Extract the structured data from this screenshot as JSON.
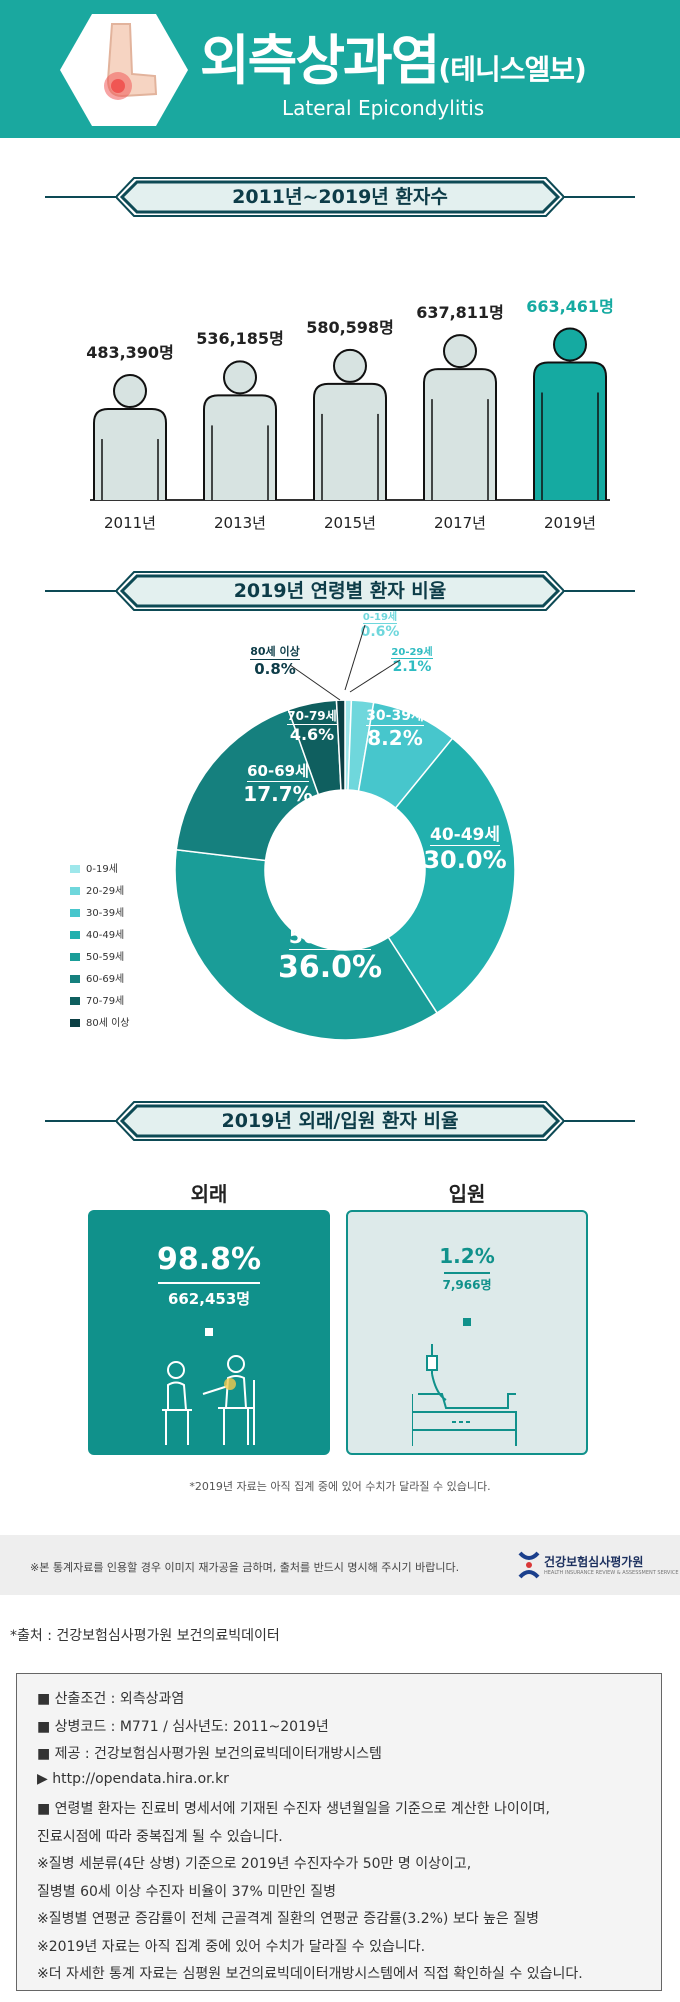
{
  "header": {
    "title": "외측상과염",
    "title_suffix": "(테니스엘보)",
    "subtitle": "Lateral Epicondylitis"
  },
  "sections": {
    "patients": "2011년~2019년 환자수",
    "age": "2019년 연령별 환자 비율",
    "visit": "2019년 외래/입원 환자 비율"
  },
  "colors": {
    "teal": "#1aa89f",
    "dark": "#0d3c48",
    "figure": "#d7e3e1",
    "highlight": "#15aaa1"
  },
  "chart_data": [
    {
      "type": "bar",
      "title": "2011년~2019년 환자수",
      "categories": [
        "2011년",
        "2013년",
        "2015년",
        "2017년",
        "2019년"
      ],
      "values": [
        483390,
        536185,
        580598,
        637811,
        663461
      ],
      "value_labels": [
        "483,390명",
        "536,185명",
        "580,598명",
        "637,811명",
        "663,461명"
      ],
      "highlight": "2019년"
    },
    {
      "type": "pie",
      "title": "2019년 연령별 환자 비율",
      "categories": [
        "0-19세",
        "20-29세",
        "30-39세",
        "40-49세",
        "50-59세",
        "60-69세",
        "70-79세",
        "80세 이상"
      ],
      "values": [
        0.6,
        2.1,
        8.2,
        30.0,
        36.0,
        17.7,
        4.6,
        0.8
      ],
      "value_labels": [
        "0.6%",
        "2.1%",
        "8.2%",
        "30.0%",
        "36.0%",
        "17.7%",
        "4.6%",
        "0.8%"
      ],
      "colors": [
        "#9ee7eb",
        "#6fd7dc",
        "#47c6cc",
        "#22b0ae",
        "#1a9d98",
        "#15807e",
        "#0f5f5f",
        "#0b3f44"
      ],
      "legend": "left"
    }
  ],
  "visit": {
    "outpatient_label": "외래",
    "outpatient_pct": "98.8%",
    "outpatient_count": "662,453명",
    "inpatient_label": "입원",
    "inpatient_pct": "1.2%",
    "inpatient_count": "7,966명",
    "note": "*2019년 자료는 아직 집계 중에 있어 수치가 달라질 수 있습니다."
  },
  "banner": {
    "notice": "※본 통계자료를 인용할 경우 이미지 재가공을 금하며, 출처를 반드시 명시해 주시기 바랍니다.",
    "org": "건강보험심사평가원",
    "org_en": "HEALTH INSURANCE REVIEW & ASSESSMENT SERVICE"
  },
  "source": "*출처 : 건강보험심사평가원 보건의료빅데이터",
  "info": [
    "■ 산출조건 : 외측상과염",
    "■ 상병코드 : M771 / 심사년도: 2011~2019년",
    "■ 제공 : 건강보험심사평가원 보건의료빅데이터개방시스템",
    "▶ http://opendata.hira.or.kr",
    "■ 연령별 환자는 진료비 명세서에 기재된 수진자 생년월일을 기준으로 계산한 나이이며,",
    "   진료시점에 따라 중복집계 될 수 있습니다.",
    "※질병 세분류(4단 상병) 기준으로 2019년 수진자수가 50만 명 이상이고,",
    "   질병별 60세 이상 수진자 비율이 37% 미만인 질병",
    "※질병별 연평균 증감률이 전체 근골격계 질환의 연평균 증감률(3.2%) 보다 높은 질병",
    "※2019년 자료는 아직 집계 중에 있어 수치가 달라질 수 있습니다.",
    "※더 자세한 통계 자료는 심평원 보건의료빅데이터개방시스템에서 직접 확인하실 수 있습니다."
  ]
}
